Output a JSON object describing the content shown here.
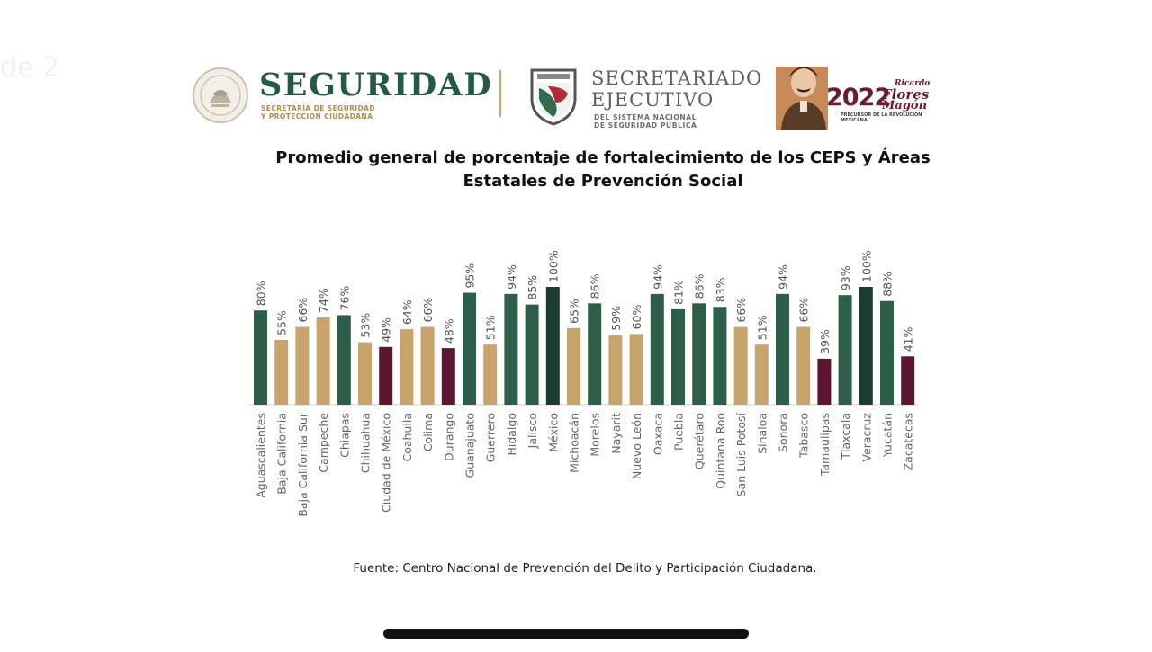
{
  "header": {
    "background_text": "de 2",
    "seguridad_title": "SEGURIDAD",
    "seguridad_sub_1": "SECRETARÍA DE SEGURIDAD",
    "seguridad_sub_2": "Y PROTECCIÓN CIUDADANA",
    "secretariado_title_1": "SECRETARIADO",
    "secretariado_title_2": "EJECUTIVO",
    "secretariado_sub_1": "DEL SISTEMA NACIONAL",
    "secretariado_sub_2": "DE SEGURIDAD PÚBLICA",
    "year_text": "2022",
    "year_name_1": "Ricardo",
    "year_name_2": "Flores",
    "year_name_3": "Magón",
    "year_sub": "PRECURSOR DE LA REVOLUCIÓN MEXICANA"
  },
  "chart_data": {
    "type": "bar",
    "title_line1": "Promedio general de porcentaje de fortalecimiento de los CEPS y Áreas",
    "title_line2": "Estatales de Prevención Social",
    "categories": [
      "Aguascalientes",
      "Baja California",
      "Baja California Sur",
      "Campeche",
      "Chiapas",
      "Chihuahua",
      "Ciudad de México",
      "Coahuila",
      "Colima",
      "Durango",
      "Guanajuato",
      "Guerrero",
      "Hidalgo",
      "Jalisco",
      "México",
      "Michoacán",
      "Morelos",
      "Nayarit",
      "Nuevo León",
      "Oaxaca",
      "Puebla",
      "Querétaro",
      "Quintana Roo",
      "San Luis Potosí",
      "Sinaloa",
      "Sonora",
      "Tabasco",
      "Tamaulipas",
      "Tlaxcala",
      "Veracruz",
      "Yucatán",
      "Zacatecas"
    ],
    "values": [
      80,
      55,
      66,
      74,
      76,
      53,
      49,
      64,
      66,
      48,
      95,
      51,
      94,
      85,
      100,
      65,
      86,
      59,
      60,
      94,
      81,
      86,
      83,
      66,
      51,
      94,
      66,
      39,
      93,
      100,
      88,
      41
    ],
    "value_labels": [
      "80%",
      "55%",
      "66%",
      "74%",
      "76%",
      "53%",
      "49%",
      "64%",
      "66%",
      "48%",
      "95%",
      "51%",
      "94%",
      "85%",
      "100%",
      "65%",
      "86%",
      "59%",
      "60%",
      "94%",
      "81%",
      "86%",
      "83%",
      "66%",
      "51%",
      "94%",
      "66%",
      "39%",
      "93%",
      "100%",
      "88%",
      "41%"
    ],
    "colors": {
      "green": "#2c5e4a",
      "dark_green": "#1a3d31",
      "tan": "#c8a46c",
      "maroon": "#5c1631"
    },
    "bar_color_keys": [
      "green",
      "tan",
      "tan",
      "tan",
      "green",
      "tan",
      "maroon",
      "tan",
      "tan",
      "maroon",
      "green",
      "tan",
      "green",
      "green",
      "dark_green",
      "tan",
      "green",
      "tan",
      "tan",
      "green",
      "green",
      "green",
      "green",
      "tan",
      "tan",
      "green",
      "tan",
      "maroon",
      "green",
      "dark_green",
      "green",
      "maroon"
    ],
    "ylim": [
      0,
      100
    ],
    "grid": false,
    "legend": "none"
  },
  "source": "Fuente: Centro Nacional de Prevención del Delito y Participación Ciudadana."
}
